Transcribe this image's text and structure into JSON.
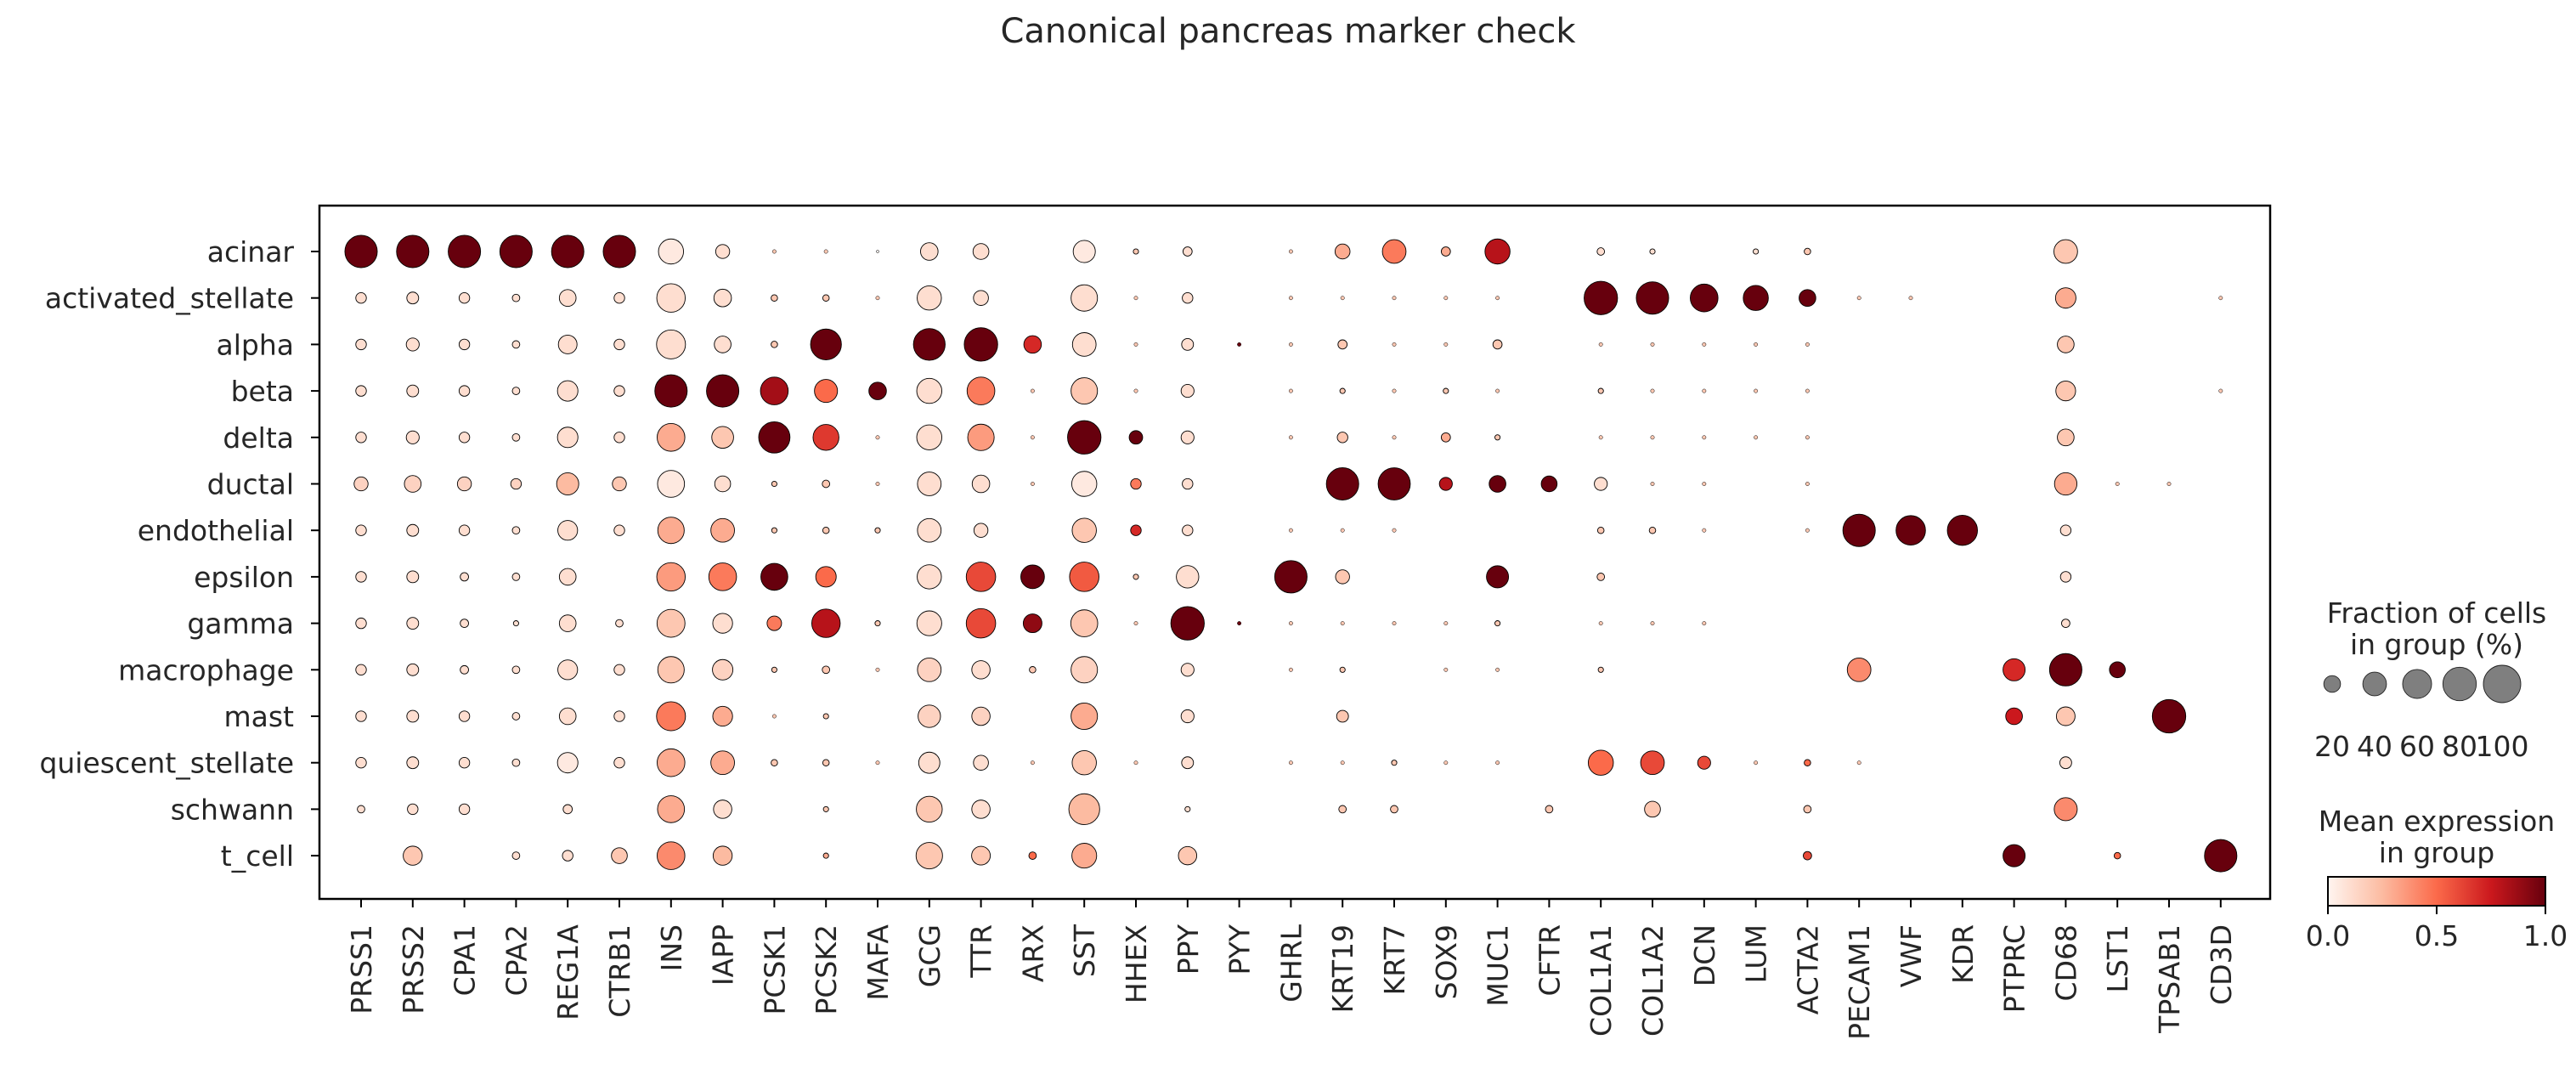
{
  "chart_data": {
    "type": "dotplot",
    "title": "Canonical pancreas marker check",
    "genes": [
      "PRSS1",
      "PRSS2",
      "CPA1",
      "CPA2",
      "REG1A",
      "CTRB1",
      "INS",
      "IAPP",
      "PCSK1",
      "PCSK2",
      "MAFA",
      "GCG",
      "TTR",
      "ARX",
      "SST",
      "HHEX",
      "PPY",
      "PYY",
      "GHRL",
      "KRT19",
      "KRT7",
      "SOX9",
      "MUC1",
      "CFTR",
      "COL1A1",
      "COL1A2",
      "DCN",
      "LUM",
      "ACTA2",
      "PECAM1",
      "VWF",
      "KDR",
      "PTPRC",
      "CD68",
      "LST1",
      "TPSAB1",
      "CD3D"
    ],
    "groups": [
      "acinar",
      "activated_stellate",
      "alpha",
      "beta",
      "delta",
      "ductal",
      "endothelial",
      "epsilon",
      "gamma",
      "macrophage",
      "mast",
      "quiescent_stellate",
      "schwann",
      "t_cell"
    ],
    "fraction_pct": [
      [
        75,
        75,
        75,
        75,
        75,
        75,
        45,
        14,
        1,
        1,
        0.5,
        22,
        18,
        0,
        35,
        2,
        6,
        0,
        1,
        16,
        40,
        6,
        45,
        0,
        4,
        2,
        0,
        2,
        3,
        0,
        0,
        0,
        0,
        40,
        0,
        0,
        0
      ],
      [
        8,
        10,
        8,
        4,
        20,
        8,
        58,
        22,
        3,
        3,
        1,
        42,
        16,
        0,
        50,
        1,
        8,
        0,
        1,
        1,
        1,
        1,
        1,
        0,
        80,
        75,
        55,
        45,
        20,
        1,
        1,
        0,
        0,
        30,
        0,
        0,
        1
      ],
      [
        8,
        12,
        8,
        4,
        25,
        8,
        60,
        20,
        3,
        68,
        0,
        72,
        80,
        22,
        40,
        1,
        10,
        1,
        1,
        6,
        1,
        1,
        6,
        0,
        1,
        1,
        1,
        1,
        1,
        0,
        0,
        0,
        0,
        20,
        0,
        0,
        0
      ],
      [
        8,
        10,
        8,
        4,
        30,
        8,
        75,
        75,
        55,
        38,
        22,
        45,
        55,
        1,
        50,
        1,
        12,
        0,
        1,
        2,
        1,
        2,
        1,
        0,
        2,
        1,
        1,
        1,
        1,
        0,
        0,
        0,
        0,
        28,
        0,
        0,
        1
      ],
      [
        8,
        12,
        8,
        4,
        30,
        8,
        55,
        34,
        70,
        48,
        1,
        45,
        50,
        1,
        80,
        13,
        12,
        0,
        1,
        8,
        1,
        6,
        2,
        0,
        1,
        1,
        1,
        1,
        1,
        0,
        0,
        0,
        0,
        20,
        0,
        0,
        0
      ],
      [
        14,
        20,
        14,
        8,
        35,
        14,
        52,
        18,
        2,
        4,
        1,
        40,
        22,
        1,
        45,
        8,
        8,
        0,
        0,
        75,
        74,
        12,
        20,
        18,
        12,
        1,
        1,
        0,
        1,
        0,
        0,
        0,
        0,
        36,
        1,
        1,
        0
      ],
      [
        8,
        10,
        8,
        4,
        28,
        8,
        50,
        40,
        2,
        3,
        2,
        40,
        14,
        0,
        42,
        8,
        8,
        0,
        1,
        1,
        1,
        0,
        0,
        0,
        3,
        3,
        1,
        0,
        1,
        75,
        62,
        65,
        0,
        8,
        0,
        0,
        0
      ],
      [
        8,
        10,
        5,
        4,
        20,
        0,
        58,
        55,
        52,
        30,
        0,
        42,
        62,
        40,
        62,
        2,
        36,
        0,
        75,
        14,
        0,
        0,
        35,
        0,
        4,
        0,
        0,
        0,
        0,
        0,
        0,
        0,
        0,
        8,
        0,
        0,
        0
      ],
      [
        8,
        10,
        5,
        2,
        20,
        4,
        56,
        28,
        15,
        58,
        2,
        44,
        62,
        25,
        52,
        1,
        80,
        1,
        1,
        1,
        1,
        1,
        2,
        0,
        1,
        1,
        1,
        0,
        0,
        0,
        0,
        0,
        0,
        5,
        0,
        0,
        0
      ],
      [
        8,
        10,
        5,
        4,
        28,
        8,
        50,
        30,
        2,
        4,
        1,
        40,
        24,
        3,
        50,
        0,
        12,
        0,
        1,
        2,
        0,
        1,
        1,
        0,
        2,
        0,
        0,
        0,
        0,
        40,
        0,
        0,
        35,
        75,
        18,
        0,
        0
      ],
      [
        8,
        10,
        8,
        4,
        20,
        8,
        60,
        28,
        1,
        2,
        0,
        36,
        24,
        0,
        50,
        0,
        12,
        0,
        0,
        10,
        0,
        0,
        0,
        0,
        0,
        0,
        0,
        0,
        0,
        0,
        0,
        0,
        20,
        25,
        0,
        80,
        0
      ],
      [
        8,
        10,
        8,
        4,
        30,
        8,
        55,
        40,
        3,
        3,
        1,
        32,
        16,
        1,
        42,
        1,
        10,
        0,
        1,
        1,
        2,
        1,
        1,
        0,
        45,
        40,
        12,
        1,
        3,
        1,
        0,
        0,
        0,
        10,
        0,
        0,
        0
      ],
      [
        4,
        8,
        8,
        0,
        6,
        0,
        52,
        24,
        0,
        2,
        0,
        48,
        24,
        0,
        68,
        0,
        2,
        0,
        0,
        4,
        4,
        0,
        0,
        4,
        0,
        18,
        0,
        0,
        4,
        0,
        0,
        0,
        0,
        38,
        0,
        0,
        0
      ],
      [
        0,
        26,
        0,
        4,
        8,
        18,
        55,
        26,
        0,
        2,
        0,
        50,
        25,
        4,
        44,
        0,
        24,
        0,
        0,
        0,
        0,
        0,
        0,
        0,
        0,
        0,
        0,
        0,
        5,
        0,
        0,
        0,
        35,
        0,
        3,
        0,
        75
      ]
    ],
    "mean_expression": [
      [
        1.0,
        1.0,
        1.0,
        1.0,
        1.0,
        1.0,
        0.05,
        0.1,
        0.2,
        0.2,
        0,
        0.1,
        0.1,
        0,
        0.05,
        0.2,
        0.1,
        0,
        0.2,
        0.3,
        0.45,
        0.3,
        0.8,
        0,
        0.1,
        0.1,
        0,
        0.1,
        0.2,
        0,
        0,
        0,
        0,
        0.2,
        0,
        0,
        0
      ],
      [
        0.1,
        0.1,
        0.1,
        0.1,
        0.1,
        0.1,
        0.1,
        0.1,
        0.2,
        0.2,
        0.2,
        0.1,
        0.1,
        0,
        0.1,
        0.2,
        0.1,
        0,
        0.2,
        0.2,
        0.2,
        0.2,
        0.2,
        0,
        1.0,
        1.0,
        1.0,
        1.0,
        1.0,
        0.2,
        0.2,
        0,
        0,
        0.3,
        0,
        0,
        0.2
      ],
      [
        0.1,
        0.1,
        0.1,
        0.1,
        0.1,
        0.1,
        0.1,
        0.1,
        0.2,
        1.0,
        0,
        1.0,
        1.0,
        0.7,
        0.1,
        0.2,
        0.1,
        1.0,
        0.2,
        0.2,
        0.2,
        0.2,
        0.2,
        0,
        0.2,
        0.2,
        0.2,
        0.2,
        0.2,
        0,
        0,
        0,
        0,
        0.2,
        0,
        0,
        0
      ],
      [
        0.1,
        0.1,
        0.1,
        0.1,
        0.1,
        0.1,
        1.0,
        1.0,
        0.85,
        0.5,
        1.0,
        0.1,
        0.45,
        0.2,
        0.2,
        0.2,
        0.1,
        0,
        0.2,
        0.2,
        0.2,
        0.2,
        0.2,
        0,
        0.2,
        0.2,
        0.2,
        0.2,
        0.2,
        0,
        0,
        0,
        0,
        0.2,
        0,
        0,
        0.2
      ],
      [
        0.1,
        0.1,
        0.1,
        0.1,
        0.1,
        0.1,
        0.3,
        0.2,
        1.0,
        0.65,
        0.2,
        0.1,
        0.35,
        0.2,
        1.0,
        1.0,
        0.1,
        0,
        0.2,
        0.2,
        0.2,
        0.3,
        0.2,
        0,
        0.2,
        0.2,
        0.2,
        0.2,
        0.2,
        0,
        0,
        0,
        0,
        0.2,
        0,
        0,
        0
      ],
      [
        0.15,
        0.15,
        0.15,
        0.15,
        0.25,
        0.2,
        0.05,
        0.1,
        0.2,
        0.2,
        0.2,
        0.1,
        0.1,
        0.2,
        0.05,
        0.45,
        0.1,
        0,
        0,
        1.0,
        1.0,
        0.8,
        1.0,
        1.0,
        0.1,
        0.2,
        0.2,
        0,
        0.2,
        0,
        0,
        0,
        0,
        0.3,
        0.2,
        0.2,
        0
      ],
      [
        0.1,
        0.1,
        0.1,
        0.1,
        0.1,
        0.1,
        0.3,
        0.3,
        0.2,
        0.2,
        0.2,
        0.1,
        0.1,
        0,
        0.2,
        0.7,
        0.1,
        0,
        0.2,
        0.2,
        0.2,
        0,
        0,
        0,
        0.2,
        0.2,
        0.2,
        0,
        0.2,
        1.0,
        1.0,
        1.0,
        0,
        0.1,
        0,
        0,
        0
      ],
      [
        0.1,
        0.1,
        0.1,
        0.1,
        0.1,
        0,
        0.35,
        0.45,
        1.0,
        0.5,
        0,
        0.1,
        0.6,
        1.0,
        0.55,
        0.2,
        0.1,
        0,
        1.0,
        0.2,
        0,
        0,
        1.0,
        0,
        0.2,
        0,
        0,
        0,
        0,
        0,
        0,
        0,
        0,
        0.1,
        0,
        0,
        0
      ],
      [
        0.1,
        0.1,
        0.1,
        0.1,
        0.1,
        0.1,
        0.2,
        0.1,
        0.45,
        0.8,
        0.2,
        0.1,
        0.6,
        0.9,
        0.2,
        0.2,
        1.0,
        1.0,
        0.2,
        0.2,
        0.2,
        0.2,
        0.2,
        0,
        0.2,
        0.2,
        0.2,
        0,
        0,
        0,
        0,
        0,
        0,
        0.1,
        0,
        0,
        0
      ],
      [
        0.1,
        0.1,
        0.1,
        0.1,
        0.1,
        0.1,
        0.2,
        0.15,
        0.2,
        0.2,
        0.2,
        0.15,
        0.1,
        0.2,
        0.15,
        0,
        0.1,
        0,
        0.2,
        0.2,
        0,
        0.2,
        0.2,
        0,
        0.2,
        0,
        0,
        0,
        0,
        0.4,
        0,
        0,
        0.7,
        1.0,
        1.0,
        0,
        0
      ],
      [
        0.1,
        0.1,
        0.1,
        0.1,
        0.1,
        0.1,
        0.45,
        0.3,
        0.2,
        0.2,
        0,
        0.15,
        0.15,
        0,
        0.3,
        0,
        0.1,
        0,
        0,
        0.2,
        0,
        0,
        0,
        0,
        0,
        0,
        0,
        0,
        0,
        0,
        0,
        0,
        0.75,
        0.2,
        0,
        1.0,
        0
      ],
      [
        0.1,
        0.1,
        0.1,
        0.1,
        0.05,
        0.1,
        0.3,
        0.3,
        0.2,
        0.2,
        0.2,
        0.1,
        0.1,
        0.2,
        0.2,
        0.2,
        0.1,
        0,
        0.2,
        0.2,
        0.2,
        0.2,
        0.2,
        0,
        0.5,
        0.6,
        0.6,
        0.2,
        0.5,
        0.2,
        0,
        0,
        0.2,
        0.1,
        0,
        0,
        0
      ],
      [
        0.1,
        0.1,
        0.1,
        0,
        0.1,
        0,
        0.3,
        0.1,
        0,
        0.2,
        0,
        0.2,
        0.1,
        0,
        0.25,
        0,
        0.1,
        0,
        0,
        0.2,
        0.2,
        0,
        0,
        0.2,
        0,
        0.2,
        0,
        0,
        0.2,
        0,
        0,
        0,
        0,
        0.4,
        0,
        0,
        0
      ],
      [
        0,
        0.2,
        0,
        0.1,
        0.1,
        0.2,
        0.4,
        0.25,
        0,
        0.3,
        0,
        0.2,
        0.2,
        0.5,
        0.3,
        0,
        0.2,
        0,
        0,
        0,
        0,
        0,
        0,
        0,
        0,
        0,
        0,
        0,
        0.6,
        0,
        0,
        0,
        1.0,
        0,
        0.5,
        0,
        1.0
      ]
    ],
    "size_legend": {
      "title_line1": "Fraction of cells",
      "title_line2": "in group (%)",
      "values": [
        20,
        40,
        60,
        80,
        100
      ],
      "labels": [
        "20",
        "40",
        "60",
        "80",
        "100"
      ]
    },
    "color_legend": {
      "title_line1": "Mean expression",
      "title_line2": "in group",
      "range": [
        0,
        1
      ],
      "ticks": [
        0.0,
        0.5,
        1.0
      ],
      "tick_labels": [
        "0.0",
        "0.5",
        "1.0"
      ],
      "colormap": [
        "#fff5f0",
        "#fcbba1",
        "#fb6a4a",
        "#cb181d",
        "#67000d"
      ]
    },
    "grid": false
  }
}
